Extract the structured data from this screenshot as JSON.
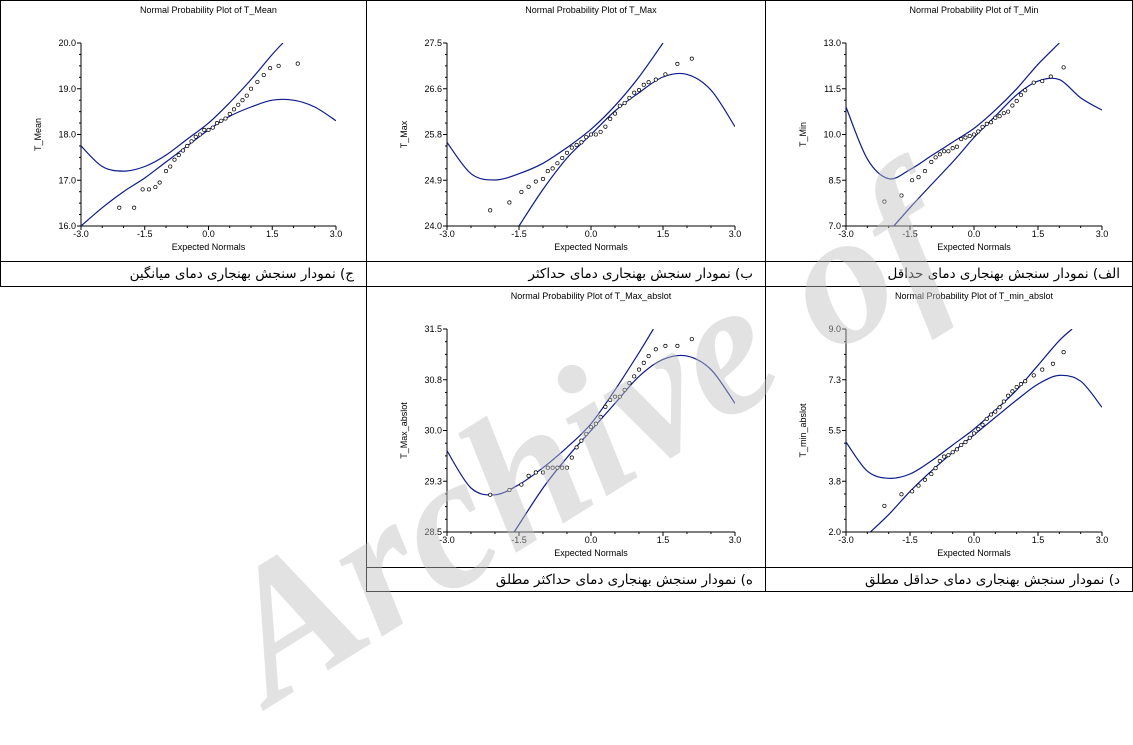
{
  "watermark": "Archive of",
  "chart_data": [
    {
      "id": "tmin",
      "type": "scatter",
      "title": "Normal Probability Plot of T_Min",
      "xlabel": "Expected Normals",
      "ylabel": "T_Min",
      "xlim": [
        -3.0,
        3.0
      ],
      "ylim": [
        7.0,
        13.0
      ],
      "xticks": [
        "-3.0",
        "-1.5",
        "0.0",
        "1.5",
        "3.0"
      ],
      "yticks": [
        "7.0",
        "8.5",
        "10.0",
        "11.5",
        "13.0"
      ],
      "caption": "الف) نمودار سنجش بهنجاری دمای حداقل",
      "line_color": "#0b1a8c",
      "points": [
        [
          -2.1,
          7.8
        ],
        [
          -1.7,
          8.0
        ],
        [
          -1.45,
          8.5
        ],
        [
          -1.3,
          8.6
        ],
        [
          -1.15,
          8.8
        ],
        [
          -1.0,
          9.1
        ],
        [
          -0.9,
          9.25
        ],
        [
          -0.8,
          9.35
        ],
        [
          -0.7,
          9.45
        ],
        [
          -0.6,
          9.45
        ],
        [
          -0.5,
          9.55
        ],
        [
          -0.4,
          9.6
        ],
        [
          -0.3,
          9.85
        ],
        [
          -0.2,
          9.9
        ],
        [
          -0.1,
          9.95
        ],
        [
          0.0,
          10.0
        ],
        [
          0.1,
          10.1
        ],
        [
          0.2,
          10.25
        ],
        [
          0.3,
          10.35
        ],
        [
          0.4,
          10.4
        ],
        [
          0.5,
          10.55
        ],
        [
          0.6,
          10.6
        ],
        [
          0.7,
          10.7
        ],
        [
          0.8,
          10.75
        ],
        [
          0.9,
          10.95
        ],
        [
          1.0,
          11.1
        ],
        [
          1.1,
          11.3
        ],
        [
          1.2,
          11.45
        ],
        [
          1.4,
          11.7
        ],
        [
          1.6,
          11.75
        ],
        [
          1.8,
          11.9
        ],
        [
          2.1,
          12.2
        ]
      ],
      "upper_band": [
        [
          -2.5,
          6.0
        ],
        [
          -1.5,
          7.6
        ],
        [
          -0.5,
          9.1
        ],
        [
          0.0,
          9.9
        ],
        [
          0.5,
          10.6
        ],
        [
          1.0,
          11.3
        ],
        [
          1.5,
          11.75
        ],
        [
          2.0,
          11.8
        ],
        [
          2.5,
          11.2
        ],
        [
          3.0,
          10.8
        ]
      ],
      "lower_band": [
        [
          -3.0,
          10.9
        ],
        [
          -2.5,
          9.2
        ],
        [
          -2.0,
          8.55
        ],
        [
          -1.5,
          8.85
        ],
        [
          -1.0,
          9.3
        ],
        [
          -0.5,
          9.75
        ],
        [
          0.0,
          10.2
        ],
        [
          0.5,
          10.8
        ],
        [
          1.0,
          11.5
        ],
        [
          1.5,
          12.3
        ],
        [
          2.0,
          13.0
        ]
      ]
    },
    {
      "id": "tmax",
      "type": "scatter",
      "title": "Normal Probability Plot of T_Max",
      "xlabel": "Expected Normals",
      "ylabel": "T_Max",
      "xlim": [
        -3.0,
        3.0
      ],
      "ylim": [
        24.0,
        27.5
      ],
      "xticks": [
        "-3.0",
        "-1.5",
        "0.0",
        "1.5",
        "3.0"
      ],
      "yticks": [
        "24.0",
        "24.9",
        "25.8",
        "26.6",
        "27.5"
      ],
      "caption": "ب) نمودار سنجش بهنجاری دمای حداکثر",
      "line_color": "#0b1a8c",
      "points": [
        [
          -2.1,
          24.3
        ],
        [
          -1.7,
          24.45
        ],
        [
          -1.45,
          24.65
        ],
        [
          -1.3,
          24.75
        ],
        [
          -1.15,
          24.85
        ],
        [
          -1.0,
          24.9
        ],
        [
          -0.9,
          25.05
        ],
        [
          -0.8,
          25.1
        ],
        [
          -0.7,
          25.2
        ],
        [
          -0.6,
          25.3
        ],
        [
          -0.5,
          25.4
        ],
        [
          -0.4,
          25.5
        ],
        [
          -0.3,
          25.55
        ],
        [
          -0.2,
          25.6
        ],
        [
          -0.1,
          25.7
        ],
        [
          0.0,
          25.75
        ],
        [
          0.1,
          25.75
        ],
        [
          0.2,
          25.8
        ],
        [
          0.3,
          25.9
        ],
        [
          0.4,
          26.05
        ],
        [
          0.5,
          26.15
        ],
        [
          0.6,
          26.3
        ],
        [
          0.7,
          26.35
        ],
        [
          0.8,
          26.45
        ],
        [
          0.9,
          26.55
        ],
        [
          1.0,
          26.6
        ],
        [
          1.1,
          26.7
        ],
        [
          1.2,
          26.75
        ],
        [
          1.35,
          26.8
        ],
        [
          1.55,
          26.9
        ],
        [
          1.8,
          27.1
        ],
        [
          2.1,
          27.2
        ]
      ],
      "upper_band": [
        [
          -3.0,
          25.6
        ],
        [
          -2.5,
          25.0
        ],
        [
          -2.0,
          24.88
        ],
        [
          -1.5,
          25.0
        ],
        [
          -1.0,
          25.2
        ],
        [
          -0.5,
          25.5
        ],
        [
          0.0,
          25.85
        ],
        [
          0.5,
          26.3
        ],
        [
          1.0,
          26.85
        ],
        [
          1.5,
          27.5
        ]
      ],
      "lower_band": [
        [
          -1.5,
          24.0
        ],
        [
          -1.0,
          24.7
        ],
        [
          -0.5,
          25.3
        ],
        [
          0.0,
          25.75
        ],
        [
          0.5,
          26.2
        ],
        [
          1.0,
          26.55
        ],
        [
          1.5,
          26.85
        ],
        [
          2.0,
          26.9
        ],
        [
          2.5,
          26.6
        ],
        [
          3.0,
          25.9
        ]
      ]
    },
    {
      "id": "tmean",
      "type": "scatter",
      "title": "Normal Probability Plot of T_Mean",
      "xlabel": "Expected Normals",
      "ylabel": "T_Mean",
      "xlim": [
        -3.0,
        3.0
      ],
      "ylim": [
        16.0,
        20.0
      ],
      "xticks": [
        "-3.0",
        "-1.5",
        "0.0",
        "1.5",
        "3.0"
      ],
      "yticks": [
        "16.0",
        "17.0",
        "18.0",
        "19.0",
        "20.0"
      ],
      "caption": "ج) نمودار سنجش بهنجاری دمای میانگین",
      "line_color": "#0b1a8c",
      "points": [
        [
          -2.1,
          16.4
        ],
        [
          -1.75,
          16.4
        ],
        [
          -1.55,
          16.8
        ],
        [
          -1.4,
          16.8
        ],
        [
          -1.25,
          16.85
        ],
        [
          -1.15,
          16.95
        ],
        [
          -1.0,
          17.2
        ],
        [
          -0.9,
          17.3
        ],
        [
          -0.8,
          17.45
        ],
        [
          -0.7,
          17.55
        ],
        [
          -0.6,
          17.65
        ],
        [
          -0.5,
          17.75
        ],
        [
          -0.4,
          17.85
        ],
        [
          -0.3,
          17.95
        ],
        [
          -0.2,
          18.0
        ],
        [
          -0.1,
          18.1
        ],
        [
          0.0,
          18.1
        ],
        [
          0.1,
          18.15
        ],
        [
          0.2,
          18.25
        ],
        [
          0.3,
          18.3
        ],
        [
          0.4,
          18.35
        ],
        [
          0.5,
          18.45
        ],
        [
          0.6,
          18.55
        ],
        [
          0.7,
          18.65
        ],
        [
          0.8,
          18.75
        ],
        [
          0.9,
          18.85
        ],
        [
          1.0,
          19.0
        ],
        [
          1.15,
          19.15
        ],
        [
          1.3,
          19.3
        ],
        [
          1.45,
          19.45
        ],
        [
          1.65,
          19.5
        ],
        [
          2.1,
          19.55
        ]
      ],
      "upper_band": [
        [
          -3.0,
          17.75
        ],
        [
          -2.5,
          17.3
        ],
        [
          -2.0,
          17.2
        ],
        [
          -1.5,
          17.3
        ],
        [
          -1.0,
          17.55
        ],
        [
          -0.5,
          17.9
        ],
        [
          0.0,
          18.25
        ],
        [
          0.5,
          18.7
        ],
        [
          1.0,
          19.2
        ],
        [
          1.5,
          19.75
        ],
        [
          1.75,
          20.0
        ]
      ],
      "lower_band": [
        [
          -3.0,
          16.0
        ],
        [
          -2.5,
          16.4
        ],
        [
          -2.0,
          16.75
        ],
        [
          -1.5,
          17.05
        ],
        [
          -1.0,
          17.4
        ],
        [
          -0.5,
          17.75
        ],
        [
          0.0,
          18.1
        ],
        [
          0.5,
          18.4
        ],
        [
          1.0,
          18.6
        ],
        [
          1.5,
          18.75
        ],
        [
          2.0,
          18.75
        ],
        [
          2.5,
          18.6
        ],
        [
          3.0,
          18.3
        ]
      ]
    },
    {
      "id": "tminabs",
      "type": "scatter",
      "title": "Normal Probability Plot of T_min_abslot",
      "xlabel": "Expected Normals",
      "ylabel": "T_min_abslot",
      "xlim": [
        -3.0,
        3.0
      ],
      "ylim": [
        2.0,
        9.0
      ],
      "xticks": [
        "-3.0",
        "-1.5",
        "0.0",
        "1.5",
        "3.0"
      ],
      "yticks": [
        "2.0",
        "3.8",
        "5.5",
        "7.3",
        "9.0"
      ],
      "caption": "د) نمودار سنجش بهنجاری دمای حداقل مطلق",
      "line_color": "#0b1a8c",
      "points": [
        [
          -2.1,
          2.9
        ],
        [
          -1.7,
          3.3
        ],
        [
          -1.45,
          3.4
        ],
        [
          -1.3,
          3.6
        ],
        [
          -1.15,
          3.8
        ],
        [
          -1.0,
          4.0
        ],
        [
          -0.9,
          4.2
        ],
        [
          -0.8,
          4.45
        ],
        [
          -0.7,
          4.6
        ],
        [
          -0.6,
          4.65
        ],
        [
          -0.5,
          4.75
        ],
        [
          -0.4,
          4.85
        ],
        [
          -0.3,
          5.0
        ],
        [
          -0.2,
          5.1
        ],
        [
          -0.1,
          5.25
        ],
        [
          0.0,
          5.4
        ],
        [
          0.1,
          5.55
        ],
        [
          0.2,
          5.7
        ],
        [
          0.3,
          5.9
        ],
        [
          0.4,
          6.05
        ],
        [
          0.5,
          6.15
        ],
        [
          0.6,
          6.3
        ],
        [
          0.7,
          6.5
        ],
        [
          0.8,
          6.7
        ],
        [
          0.9,
          6.85
        ],
        [
          1.0,
          7.0
        ],
        [
          1.1,
          7.1
        ],
        [
          1.2,
          7.2
        ],
        [
          1.4,
          7.4
        ],
        [
          1.6,
          7.6
        ],
        [
          1.85,
          7.8
        ],
        [
          2.1,
          8.2
        ]
      ],
      "upper_band": [
        [
          -3.0,
          5.1
        ],
        [
          -2.5,
          4.1
        ],
        [
          -2.0,
          3.85
        ],
        [
          -1.5,
          4.0
        ],
        [
          -1.0,
          4.45
        ],
        [
          -0.5,
          5.0
        ],
        [
          0.0,
          5.55
        ],
        [
          0.5,
          6.2
        ],
        [
          1.0,
          6.9
        ],
        [
          1.5,
          7.75
        ],
        [
          2.0,
          8.6
        ],
        [
          2.3,
          9.0
        ]
      ],
      "lower_band": [
        [
          -2.5,
          1.9
        ],
        [
          -2.0,
          2.6
        ],
        [
          -1.5,
          3.4
        ],
        [
          -1.0,
          4.1
        ],
        [
          -0.5,
          4.75
        ],
        [
          0.0,
          5.35
        ],
        [
          0.5,
          5.95
        ],
        [
          1.0,
          6.55
        ],
        [
          1.5,
          7.1
        ],
        [
          2.0,
          7.4
        ],
        [
          2.5,
          7.2
        ],
        [
          3.0,
          6.3
        ]
      ]
    },
    {
      "id": "tmaxabs",
      "type": "scatter",
      "title": "Normal Probability Plot of T_Max_abslot",
      "xlabel": "Expected Normals",
      "ylabel": "T_Max_abslot",
      "xlim": [
        -3.0,
        3.0
      ],
      "ylim": [
        28.5,
        31.5
      ],
      "xticks": [
        "-3.0",
        "-1.5",
        "0.0",
        "1.5",
        "3.0"
      ],
      "yticks": [
        "28.5",
        "29.3",
        "30.0",
        "30.8",
        "31.5"
      ],
      "caption": "ه) نمودار سنجش بهنجاری دمای حداکثر مطلق",
      "line_color": "#0b1a8c",
      "points": [
        [
          -2.1,
          29.05
        ],
        [
          -1.7,
          29.12
        ],
        [
          -1.45,
          29.2
        ],
        [
          -1.3,
          29.33
        ],
        [
          -1.15,
          29.38
        ],
        [
          -1.0,
          29.38
        ],
        [
          -0.9,
          29.45
        ],
        [
          -0.8,
          29.45
        ],
        [
          -0.7,
          29.45
        ],
        [
          -0.6,
          29.45
        ],
        [
          -0.5,
          29.45
        ],
        [
          -0.4,
          29.6
        ],
        [
          -0.3,
          29.75
        ],
        [
          -0.2,
          29.85
        ],
        [
          -0.1,
          29.95
        ],
        [
          0.0,
          30.05
        ],
        [
          0.1,
          30.1
        ],
        [
          0.2,
          30.2
        ],
        [
          0.3,
          30.35
        ],
        [
          0.4,
          30.45
        ],
        [
          0.5,
          30.5
        ],
        [
          0.6,
          30.5
        ],
        [
          0.7,
          30.6
        ],
        [
          0.8,
          30.7
        ],
        [
          0.9,
          30.8
        ],
        [
          1.0,
          30.9
        ],
        [
          1.1,
          31.0
        ],
        [
          1.2,
          31.1
        ],
        [
          1.35,
          31.2
        ],
        [
          1.55,
          31.25
        ],
        [
          1.8,
          31.25
        ],
        [
          2.1,
          31.35
        ]
      ],
      "upper_band": [
        [
          -3.0,
          29.7
        ],
        [
          -2.5,
          29.15
        ],
        [
          -2.0,
          29.05
        ],
        [
          -1.5,
          29.2
        ],
        [
          -1.0,
          29.45
        ],
        [
          -0.5,
          29.75
        ],
        [
          0.0,
          30.1
        ],
        [
          0.5,
          30.6
        ],
        [
          1.0,
          31.15
        ],
        [
          1.3,
          31.5
        ]
      ],
      "lower_band": [
        [
          -1.6,
          28.5
        ],
        [
          -1.0,
          29.15
        ],
        [
          -0.5,
          29.6
        ],
        [
          0.0,
          30.0
        ],
        [
          0.5,
          30.4
        ],
        [
          1.0,
          30.8
        ],
        [
          1.5,
          31.05
        ],
        [
          2.0,
          31.1
        ],
        [
          2.5,
          30.9
        ],
        [
          3.0,
          30.4
        ]
      ]
    }
  ]
}
